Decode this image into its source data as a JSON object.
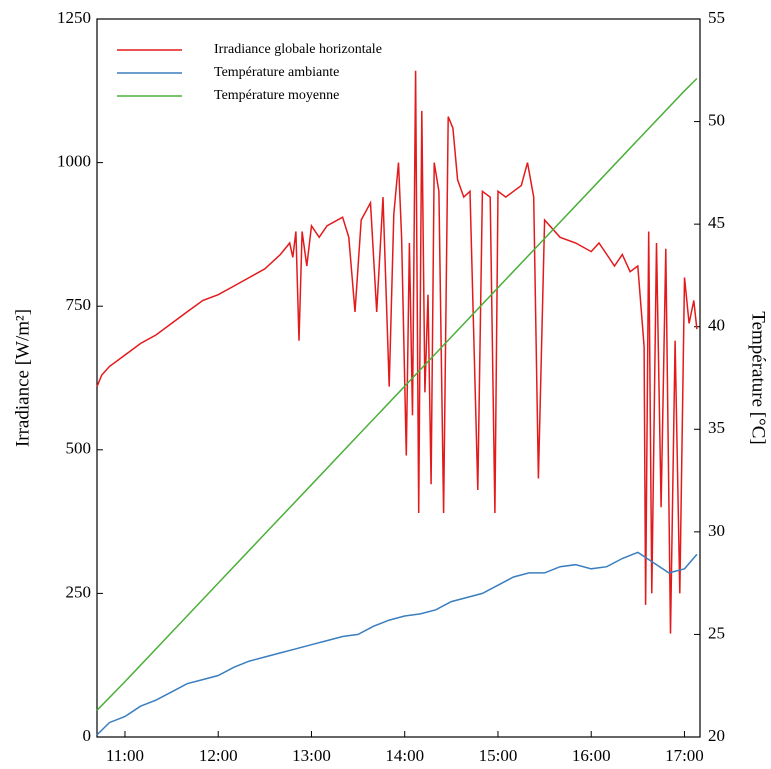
{
  "chart_data": {
    "type": "line",
    "y_label": "Irradiance [W/m²]",
    "y2_label": "Température [°C]",
    "xlim": [
      "10:42",
      "17:10"
    ],
    "xticks": [
      "11:00",
      "12:00",
      "13:00",
      "14:00",
      "15:00",
      "16:00",
      "17:00"
    ],
    "ylim": [
      0,
      1250
    ],
    "yticks": [
      0,
      250,
      500,
      750,
      1000,
      1250
    ],
    "y2lim": [
      20,
      55
    ],
    "y2ticks": [
      20,
      25,
      30,
      35,
      40,
      45,
      50,
      55
    ],
    "legend": "upper-left",
    "series": [
      {
        "name": "Irradiance globale horizontale",
        "color": "#e31a1c",
        "x": [
          "10:42",
          "10:45",
          "10:50",
          "11:00",
          "11:10",
          "11:20",
          "11:30",
          "11:40",
          "11:50",
          "12:00",
          "12:10",
          "12:20",
          "12:30",
          "12:40",
          "12:46",
          "12:48",
          "12:50",
          "12:52",
          "12:54",
          "12:57",
          "13:00",
          "13:05",
          "13:10",
          "13:20",
          "13:24",
          "13:28",
          "13:32",
          "13:38",
          "13:42",
          "13:46",
          "13:50",
          "13:53",
          "13:56",
          "13:58",
          "14:01",
          "14:03",
          "14:05",
          "14:07",
          "14:09",
          "14:11",
          "14:13",
          "14:15",
          "14:17",
          "14:19",
          "14:22",
          "14:25",
          "14:28",
          "14:31",
          "14:34",
          "14:38",
          "14:42",
          "14:47",
          "14:50",
          "14:55",
          "14:58",
          "15:00",
          "15:05",
          "15:10",
          "15:15",
          "15:19",
          "15:23",
          "15:26",
          "15:30",
          "15:40",
          "15:50",
          "16:00",
          "16:05",
          "16:10",
          "16:15",
          "16:20",
          "16:25",
          "16:30",
          "16:34",
          "16:35",
          "16:37",
          "16:39",
          "16:42",
          "16:45",
          "16:48",
          "16:51",
          "16:54",
          "16:57",
          "17:00",
          "17:03",
          "17:06",
          "17:08"
        ],
        "values": [
          610,
          630,
          645,
          665,
          685,
          700,
          720,
          740,
          760,
          770,
          785,
          800,
          815,
          840,
          860,
          835,
          880,
          690,
          880,
          820,
          890,
          870,
          890,
          905,
          870,
          740,
          900,
          930,
          740,
          940,
          610,
          910,
          1000,
          870,
          490,
          860,
          560,
          1160,
          390,
          1090,
          600,
          770,
          440,
          1000,
          950,
          390,
          1080,
          1060,
          970,
          940,
          950,
          430,
          950,
          940,
          390,
          950,
          940,
          950,
          960,
          1000,
          940,
          450,
          900,
          870,
          860,
          845,
          860,
          840,
          820,
          840,
          810,
          820,
          680,
          230,
          880,
          250,
          860,
          400,
          850,
          180,
          690,
          250,
          800,
          720,
          760,
          710
        ]
      },
      {
        "name": "Température ambiante",
        "color": "#3a7ebf",
        "axis": "y2",
        "x": [
          "10:42",
          "10:50",
          "11:00",
          "11:10",
          "11:20",
          "11:30",
          "11:40",
          "11:50",
          "12:00",
          "12:10",
          "12:20",
          "12:30",
          "12:40",
          "12:50",
          "13:00",
          "13:10",
          "13:20",
          "13:30",
          "13:40",
          "13:50",
          "14:00",
          "14:10",
          "14:20",
          "14:30",
          "14:40",
          "14:50",
          "15:00",
          "15:10",
          "15:20",
          "15:30",
          "15:40",
          "15:50",
          "16:00",
          "16:10",
          "16:20",
          "16:30",
          "16:40",
          "16:50",
          "17:00",
          "17:08"
        ],
        "values": [
          20.1,
          20.7,
          21.0,
          21.5,
          21.8,
          22.2,
          22.6,
          22.8,
          23.0,
          23.4,
          23.7,
          23.9,
          24.1,
          24.3,
          24.5,
          24.7,
          24.9,
          25.0,
          25.4,
          25.7,
          25.9,
          26.0,
          26.2,
          26.6,
          26.8,
          27.0,
          27.4,
          27.8,
          28.0,
          28.0,
          28.3,
          28.4,
          28.2,
          28.3,
          28.7,
          29.0,
          28.5,
          28.0,
          28.2,
          28.9
        ]
      },
      {
        "name": "Température moyenne",
        "color": "#4caf3a",
        "axis": "y2",
        "x": [
          "10:42",
          "11:00",
          "11:30",
          "12:00",
          "12:30",
          "13:00",
          "13:30",
          "14:00",
          "14:30",
          "15:00",
          "15:30",
          "16:00",
          "16:30",
          "17:00",
          "17:08"
        ],
        "values": [
          21.3,
          22.7,
          25.1,
          27.5,
          29.9,
          32.3,
          34.7,
          37.1,
          39.5,
          41.9,
          44.3,
          46.7,
          49.1,
          51.5,
          52.1
        ]
      }
    ]
  }
}
